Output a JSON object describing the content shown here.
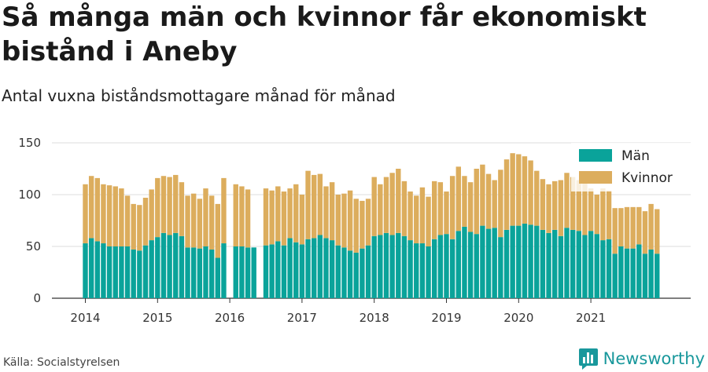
{
  "header": {
    "title": "Så många män och kvinnor får ekonomiskt bistånd i Aneby",
    "subtitle": "Antal vuxna biståndsmottagare månad för månad"
  },
  "footer": {
    "source": "Källa: Socialstyrelsen",
    "brand": "Newsworthy",
    "brand_color": "#19989c"
  },
  "chart_data": {
    "type": "bar",
    "stacked": true,
    "start": "2014-01",
    "frequency": "monthly",
    "colors": {
      "Män": "#0aa39a",
      "Kvinnor": "#dcad5d"
    },
    "legend_position": "top-right",
    "grid": true,
    "ylim": [
      0,
      150
    ],
    "yticks": [
      0,
      50,
      100,
      150
    ],
    "xticks": [
      "2014",
      "2015",
      "2016",
      "2017",
      "2018",
      "2019",
      "2020",
      "2021"
    ],
    "series": [
      {
        "name": "Män",
        "values": [
          53,
          58,
          55,
          53,
          50,
          50,
          50,
          50,
          47,
          46,
          51,
          56,
          59,
          63,
          61,
          63,
          60,
          49,
          49,
          48,
          50,
          47,
          39,
          53,
          null,
          50,
          50,
          49,
          49,
          null,
          51,
          52,
          55,
          51,
          58,
          54,
          52,
          57,
          58,
          61,
          58,
          56,
          51,
          49,
          46,
          44,
          48,
          51,
          60,
          61,
          63,
          61,
          63,
          60,
          56,
          53,
          53,
          50,
          57,
          61,
          62,
          57,
          65,
          69,
          64,
          62,
          70,
          67,
          68,
          59,
          66,
          70,
          70,
          72,
          71,
          70,
          66,
          63,
          66,
          60,
          68,
          66,
          65,
          61,
          65,
          62,
          56,
          57,
          43,
          50,
          48,
          48,
          52,
          43,
          47,
          43
        ],
        "totals": [
          110,
          118,
          116,
          110,
          109,
          108,
          106,
          99,
          91,
          90,
          97,
          105,
          116,
          118,
          117,
          119,
          112,
          99,
          101,
          96,
          106,
          99,
          91,
          116,
          null,
          110,
          108,
          105,
          null,
          null,
          106,
          104,
          108,
          103,
          106,
          110,
          100,
          123,
          119,
          120,
          108,
          112,
          100,
          101,
          104,
          96,
          94,
          96,
          117,
          110,
          117,
          121,
          125,
          113,
          103,
          99,
          107,
          98,
          113,
          112,
          103,
          118,
          127,
          118,
          112,
          125,
          129,
          120,
          114,
          124,
          134,
          140,
          139,
          137,
          133,
          123,
          115,
          110,
          113,
          114,
          121,
          117,
          114,
          112,
          106,
          100,
          106,
          104,
          87,
          87,
          88,
          88,
          88,
          84,
          91,
          86
        ]
      },
      {
        "name": "Kvinnor",
        "values": [
          57,
          60,
          61,
          57,
          59,
          58,
          56,
          49,
          44,
          44,
          46,
          49,
          57,
          55,
          56,
          56,
          52,
          50,
          52,
          48,
          56,
          52,
          52,
          63,
          null,
          60,
          58,
          56,
          null,
          null,
          55,
          52,
          53,
          52,
          48,
          56,
          48,
          66,
          61,
          59,
          50,
          56,
          49,
          52,
          58,
          52,
          46,
          45,
          57,
          49,
          54,
          60,
          62,
          53,
          47,
          46,
          54,
          48,
          56,
          51,
          41,
          61,
          62,
          49,
          48,
          63,
          59,
          53,
          46,
          65,
          68,
          70,
          69,
          65,
          62,
          53,
          49,
          47,
          47,
          54,
          53,
          51,
          49,
          51,
          41,
          38,
          50,
          47,
          44,
          37,
          40,
          40,
          36,
          41,
          44,
          43
        ]
      }
    ]
  }
}
